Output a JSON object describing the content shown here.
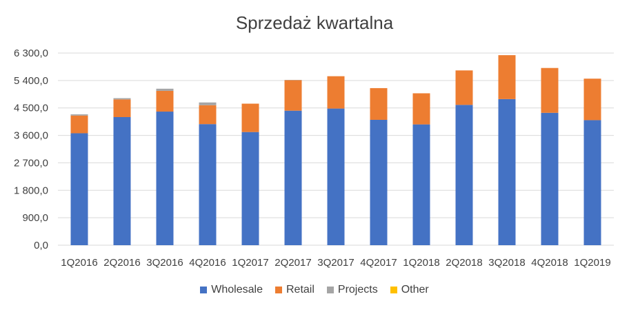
{
  "chart_data": {
    "type": "bar",
    "stacked": true,
    "title": "Sprzedaż kwartalna",
    "xlabel": "",
    "ylabel": "",
    "ylim": [
      0,
      6300
    ],
    "y_ticks": [
      "0,0",
      "900,0",
      "1 800,0",
      "2 700,0",
      "3 600,0",
      "4 500,0",
      "5 400,0",
      "6 300,0"
    ],
    "y_tick_values": [
      0,
      900,
      1800,
      2700,
      3600,
      4500,
      5400,
      6300
    ],
    "grid": true,
    "legend_position": "bottom",
    "categories": [
      "1Q2016",
      "2Q2016",
      "3Q2016",
      "4Q2016",
      "1Q2017",
      "2Q2017",
      "3Q2017",
      "4Q2017",
      "1Q2018",
      "2Q2018",
      "3Q2018",
      "4Q2018",
      "1Q2019"
    ],
    "series": [
      {
        "name": "Wholesale",
        "color": "#4472C4",
        "values": [
          3670,
          4200,
          4380,
          3970,
          3710,
          4410,
          4480,
          4110,
          3960,
          4600,
          4790,
          4340,
          4100
        ]
      },
      {
        "name": "Retail",
        "color": "#ED7D31",
        "values": [
          580,
          580,
          680,
          620,
          930,
          1000,
          1060,
          1040,
          1020,
          1130,
          1440,
          1470,
          1360
        ]
      },
      {
        "name": "Projects",
        "color": "#A5A5A5",
        "values": [
          40,
          40,
          70,
          90,
          0,
          10,
          0,
          0,
          0,
          0,
          0,
          0,
          0
        ]
      },
      {
        "name": "Other",
        "color": "#FFC000",
        "values": [
          0,
          0,
          0,
          0,
          0,
          0,
          0,
          0,
          0,
          0,
          0,
          0,
          0
        ]
      }
    ]
  }
}
